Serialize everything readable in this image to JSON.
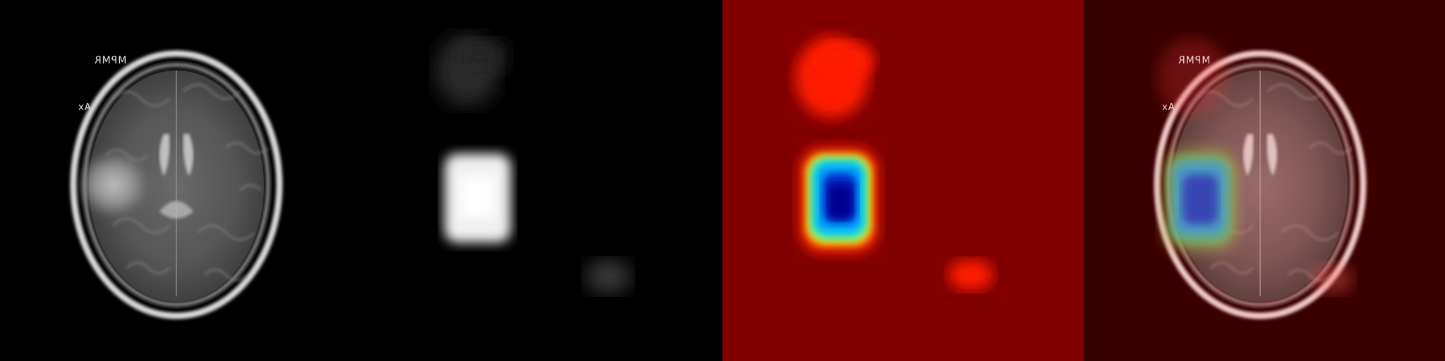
{
  "panels": [
    {
      "name": "mri-original"
    },
    {
      "name": "grayscale-attention-map"
    },
    {
      "name": "jet-colormap-heatmap"
    },
    {
      "name": "heatmap-overlay"
    }
  ],
  "scan_labels": {
    "top_label": "MPMR",
    "side_label": "Ax"
  }
}
